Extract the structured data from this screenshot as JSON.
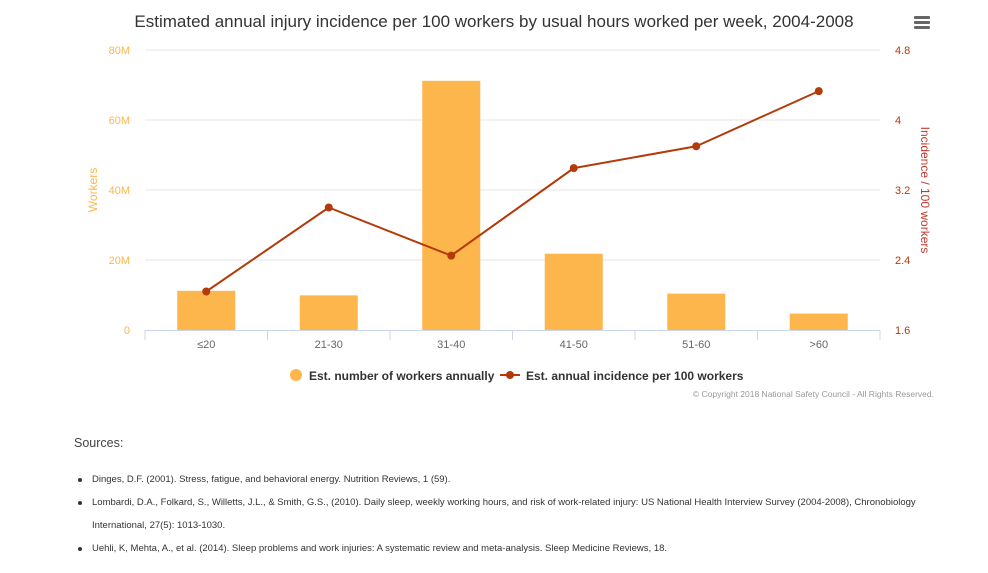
{
  "menu_icon": "hamburger-menu-icon",
  "colors": {
    "bars": "#FDB64B",
    "line": "#B33A0A",
    "left_axis": "#FDB64B",
    "right_axis": "#C0392B",
    "grid": "#E6E6E6"
  },
  "chart_data": {
    "type": "bar",
    "title": "Estimated annual injury incidence per 100 workers by usual hours worked per week, 2004-2008",
    "categories": [
      "≤20",
      "21-30",
      "31-40",
      "41-50",
      "51-60",
      ">60"
    ],
    "series": [
      {
        "name": "Est. number of workers annually",
        "type": "bar",
        "axis": "left",
        "values": [
          11200000,
          9900000,
          71200000,
          21800000,
          10400000,
          4700000
        ]
      },
      {
        "name": "Est. annual incidence per 100 workers",
        "type": "line",
        "axis": "right",
        "values": [
          2.04,
          3.0,
          2.45,
          3.45,
          3.7,
          4.33
        ]
      }
    ],
    "y_left": {
      "label": "Workers",
      "ylim": [
        0,
        80000000
      ],
      "ticks": [
        "0",
        "20M",
        "40M",
        "60M",
        "80M"
      ]
    },
    "y_right": {
      "label": "Incidence / 100 workers",
      "ylim": [
        1.6,
        4.8
      ],
      "ticks": [
        "1.6",
        "2.4",
        "3.2",
        "4",
        "4.8"
      ]
    },
    "grid": true,
    "legend_position": "bottom-center",
    "credit": "© Copyright 2018 National Safety Council - All Rights Reserved."
  },
  "sources": {
    "title": "Sources:",
    "items": [
      "Dinges, D.F. (2001). Stress, fatigue, and behavioral energy. Nutrition Reviews, 1 (59).",
      "Lombardi, D.A., Folkard, S., Willetts, J.L., & Smith, G.S., (2010). Daily sleep, weekly working hours, and risk of work-related injury: US National Health Interview Survey (2004-2008), Chronobiology International, 27(5): 1013-1030.",
      "Uehli, K, Mehta, A., et al. (2014). Sleep problems and work injuries: A systematic review and meta-analysis. Sleep Medicine Reviews, 18."
    ]
  }
}
